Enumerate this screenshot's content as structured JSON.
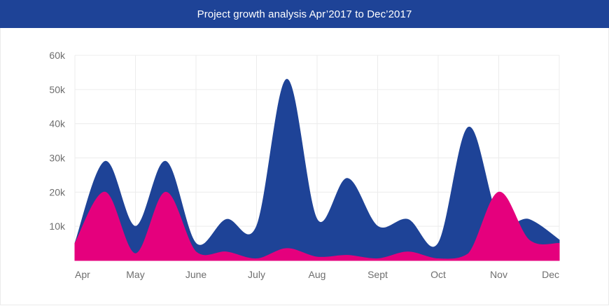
{
  "header": {
    "title": "Project growth analysis Apr’2017 to Dec’2017"
  },
  "colors": {
    "header_bg": "#1e4397",
    "series_total": "#1e4397",
    "series_sub": "#e5007d",
    "grid": "#ececec",
    "tick_text": "#6e6e6e"
  },
  "chart_data": {
    "type": "area",
    "title": "Project growth analysis Apr’2017 to Dec’2017",
    "xlabel": "",
    "ylabel": "",
    "categories": [
      "Apr",
      "May",
      "June",
      "July",
      "Aug",
      "Sept",
      "Oct",
      "Nov",
      "Dec"
    ],
    "ylim": [
      0,
      60000
    ],
    "y_ticks": [
      10000,
      20000,
      30000,
      40000,
      50000,
      60000
    ],
    "y_tick_labels": [
      "10k",
      "20k",
      "30k",
      "40k",
      "50k",
      "60k"
    ],
    "x": [
      0,
      0.5,
      1,
      1.5,
      2,
      2.5,
      3,
      3.5,
      4,
      4.5,
      5,
      5.5,
      6,
      6.5,
      7,
      7.5,
      8
    ],
    "series": [
      {
        "values": [
          5000,
          29000,
          10000,
          29000,
          5000,
          12000,
          10000,
          53000,
          12000,
          24000,
          10000,
          12000,
          5000,
          39000,
          12000,
          12000,
          6000
        ]
      },
      {
        "values": [
          5000,
          20000,
          2000,
          20000,
          2500,
          2500,
          500,
          3500,
          1000,
          1500,
          500,
          2500,
          500,
          2000,
          20000,
          6000,
          5000
        ]
      }
    ],
    "grid": true,
    "legend": "none"
  }
}
